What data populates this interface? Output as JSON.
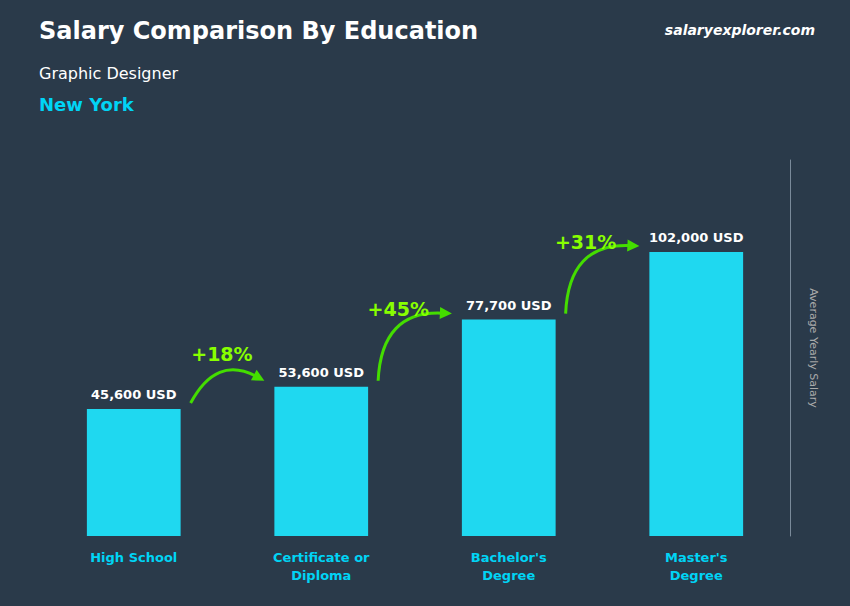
{
  "chart_data": {
    "type": "bar",
    "title": "Salary Comparison By Education",
    "subtitle": "Graphic Designer",
    "annotations": {
      "location": "New York",
      "watermark": "salaryexplorer.com",
      "changes": [
        "+18%",
        "+45%",
        "+31%"
      ]
    },
    "ylabel": "Average Yearly Salary",
    "categories": [
      "High School",
      "Certificate or\nDiploma",
      "Bachelor's\nDegree",
      "Master's\nDegree"
    ],
    "values": [
      45600,
      53600,
      77700,
      102000
    ],
    "value_labels": [
      "45,600 USD",
      "53,600 USD",
      "77,700 USD",
      "102,000 USD"
    ],
    "data_labels": true,
    "color": "#1fd8f0",
    "ylim": [
      0,
      135000
    ],
    "grid": false,
    "tick_labels": "x"
  }
}
